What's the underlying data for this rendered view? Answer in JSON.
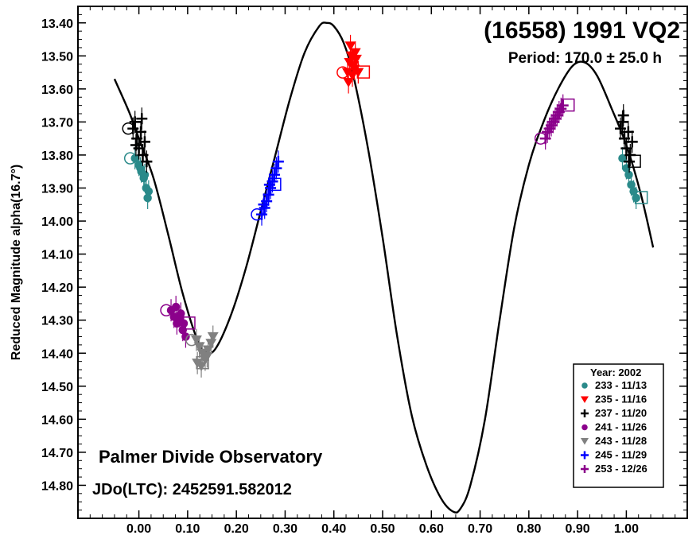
{
  "chart_data": {
    "type": "scatter",
    "title": "(16558) 1991 VQ2",
    "subtitle": "Period: 170.0 ± 25.0 h",
    "ylabel": "Reduced Magnitude alpha(16.7°)",
    "xlabel": "",
    "xlim": [
      -0.125,
      1.125
    ],
    "ylim": [
      14.9,
      13.35
    ],
    "y_inverted": true,
    "x_ticks": [
      "0.00",
      "0.10",
      "0.20",
      "0.30",
      "0.40",
      "0.50",
      "0.60",
      "0.70",
      "0.80",
      "0.90",
      "1.00"
    ],
    "y_ticks": [
      "13.40",
      "13.50",
      "13.60",
      "13.70",
      "13.80",
      "13.90",
      "14.00",
      "14.10",
      "14.20",
      "14.30",
      "14.40",
      "14.50",
      "14.60",
      "14.70",
      "14.80"
    ],
    "annotations": {
      "observatory": "Palmer Divide Observatory",
      "jdo": "JDo(LTC): 2452591.582012"
    },
    "legend": {
      "title": "Year: 2002",
      "position": "bottom-right",
      "entries": [
        {
          "label": "233 - 11/13",
          "color": "#2a8a8a",
          "marker": "circle"
        },
        {
          "label": "235 - 11/16",
          "color": "#ff0000",
          "marker": "triangle-down"
        },
        {
          "label": "237 - 11/20",
          "color": "#000000",
          "marker": "plus"
        },
        {
          "label": "241 - 11/26",
          "color": "#8b008b",
          "marker": "circle"
        },
        {
          "label": "243 - 11/28",
          "color": "#808080",
          "marker": "triangle-down"
        },
        {
          "label": "245 - 11/29",
          "color": "#0000ff",
          "marker": "plus"
        },
        {
          "label": "253 - 12/26",
          "color": "#8b008b",
          "marker": "plus"
        }
      ]
    },
    "fit_curve": {
      "color": "#000000",
      "points": [
        [
          -0.05,
          13.57
        ],
        [
          -0.02,
          13.67
        ],
        [
          0.0,
          13.75
        ],
        [
          0.03,
          13.87
        ],
        [
          0.06,
          14.04
        ],
        [
          0.09,
          14.22
        ],
        [
          0.12,
          14.36
        ],
        [
          0.14,
          14.4
        ],
        [
          0.16,
          14.38
        ],
        [
          0.19,
          14.28
        ],
        [
          0.22,
          14.14
        ],
        [
          0.25,
          13.97
        ],
        [
          0.28,
          13.8
        ],
        [
          0.31,
          13.63
        ],
        [
          0.34,
          13.49
        ],
        [
          0.37,
          13.41
        ],
        [
          0.385,
          13.4
        ],
        [
          0.4,
          13.41
        ],
        [
          0.42,
          13.46
        ],
        [
          0.44,
          13.56
        ],
        [
          0.47,
          13.78
        ],
        [
          0.5,
          14.05
        ],
        [
          0.53,
          14.35
        ],
        [
          0.56,
          14.59
        ],
        [
          0.59,
          14.74
        ],
        [
          0.62,
          14.84
        ],
        [
          0.645,
          14.88
        ],
        [
          0.66,
          14.87
        ],
        [
          0.68,
          14.8
        ],
        [
          0.71,
          14.6
        ],
        [
          0.74,
          14.3
        ],
        [
          0.77,
          14.02
        ],
        [
          0.8,
          13.83
        ],
        [
          0.83,
          13.7
        ],
        [
          0.86,
          13.6
        ],
        [
          0.89,
          13.53
        ],
        [
          0.915,
          13.52
        ],
        [
          0.94,
          13.56
        ],
        [
          0.97,
          13.66
        ],
        [
          1.0,
          13.77
        ],
        [
          1.03,
          13.92
        ],
        [
          1.055,
          14.08
        ]
      ]
    },
    "series": [
      {
        "name": "233 - 11/13",
        "color": "#2a8a8a",
        "marker": "circle",
        "points": [
          [
            -0.008,
            13.81
          ],
          [
            0.0,
            13.83
          ],
          [
            0.005,
            13.85
          ],
          [
            0.01,
            13.87
          ],
          [
            0.015,
            13.9
          ],
          [
            0.02,
            13.91
          ],
          [
            0.012,
            13.86
          ],
          [
            0.003,
            13.84
          ],
          [
            0.018,
            13.93
          ],
          [
            0.992,
            13.81
          ],
          [
            1.0,
            13.84
          ],
          [
            1.005,
            13.86
          ],
          [
            1.01,
            13.89
          ],
          [
            1.015,
            13.91
          ],
          [
            1.02,
            13.93
          ]
        ]
      },
      {
        "name": "235 - 11/16",
        "color": "#ff0000",
        "marker": "triangle-down",
        "points": [
          [
            0.428,
            13.55
          ],
          [
            0.432,
            13.52
          ],
          [
            0.436,
            13.5
          ],
          [
            0.44,
            13.53
          ],
          [
            0.444,
            13.49
          ],
          [
            0.434,
            13.47
          ],
          [
            0.438,
            13.56
          ],
          [
            0.442,
            13.54
          ],
          [
            0.446,
            13.51
          ],
          [
            0.43,
            13.58
          ],
          [
            0.45,
            13.55
          ]
        ]
      },
      {
        "name": "237 - 11/20",
        "color": "#000000",
        "marker": "plus",
        "points": [
          [
            -0.012,
            13.72
          ],
          [
            -0.008,
            13.7
          ],
          [
            -0.004,
            13.75
          ],
          [
            0.0,
            13.78
          ],
          [
            0.004,
            13.73
          ],
          [
            0.008,
            13.8
          ],
          [
            0.012,
            13.76
          ],
          [
            0.016,
            13.82
          ],
          [
            0.006,
            13.69
          ],
          [
            -0.006,
            13.77
          ],
          [
            0.988,
            13.72
          ],
          [
            0.992,
            13.7
          ],
          [
            0.996,
            13.75
          ],
          [
            1.0,
            13.78
          ],
          [
            1.004,
            13.73
          ],
          [
            1.008,
            13.8
          ],
          [
            1.012,
            13.76
          ],
          [
            0.994,
            13.68
          ],
          [
            1.006,
            13.82
          ]
        ]
      },
      {
        "name": "241 - 11/26",
        "color": "#8b008b",
        "marker": "circle",
        "points": [
          [
            0.066,
            14.27
          ],
          [
            0.072,
            14.29
          ],
          [
            0.078,
            14.31
          ],
          [
            0.084,
            14.3
          ],
          [
            0.09,
            14.33
          ],
          [
            0.096,
            14.35
          ],
          [
            0.076,
            14.26
          ],
          [
            0.086,
            14.28
          ],
          [
            0.092,
            14.31
          ]
        ]
      },
      {
        "name": "243 - 11/28",
        "color": "#808080",
        "marker": "triangle-down",
        "points": [
          [
            0.118,
            14.36
          ],
          [
            0.124,
            14.38
          ],
          [
            0.13,
            14.4
          ],
          [
            0.136,
            14.42
          ],
          [
            0.142,
            14.39
          ],
          [
            0.148,
            14.37
          ],
          [
            0.152,
            14.35
          ],
          [
            0.128,
            14.44
          ],
          [
            0.14,
            14.41
          ],
          [
            0.12,
            14.43
          ]
        ]
      },
      {
        "name": "245 - 11/29",
        "color": "#0000ff",
        "marker": "plus",
        "points": [
          [
            0.252,
            13.98
          ],
          [
            0.258,
            13.96
          ],
          [
            0.262,
            13.94
          ],
          [
            0.266,
            13.92
          ],
          [
            0.27,
            13.9
          ],
          [
            0.274,
            13.88
          ],
          [
            0.278,
            13.86
          ],
          [
            0.282,
            13.84
          ],
          [
            0.286,
            13.82
          ],
          [
            0.256,
            13.95
          ],
          [
            0.268,
            13.89
          ]
        ]
      },
      {
        "name": "253 - 12/26",
        "color": "#8b008b",
        "marker": "plus",
        "points": [
          [
            0.834,
            13.75
          ],
          [
            0.838,
            13.73
          ],
          [
            0.842,
            13.72
          ],
          [
            0.846,
            13.71
          ],
          [
            0.85,
            13.7
          ],
          [
            0.854,
            13.69
          ],
          [
            0.858,
            13.68
          ],
          [
            0.862,
            13.67
          ],
          [
            0.866,
            13.66
          ],
          [
            0.87,
            13.65
          ]
        ]
      }
    ]
  }
}
